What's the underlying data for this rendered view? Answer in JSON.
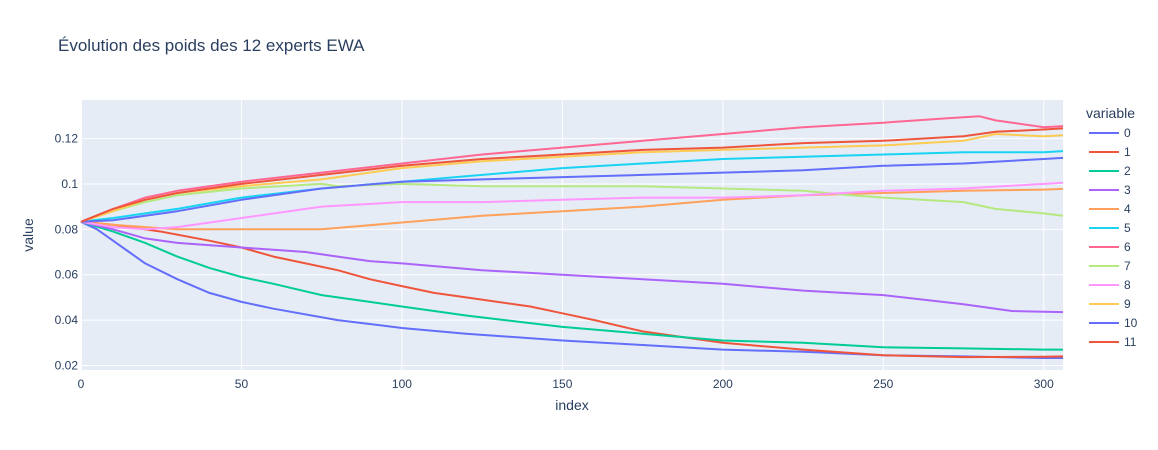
{
  "chart_data": {
    "type": "line",
    "title": "Évolution des poids des 12 experts EWA",
    "xlabel": "index",
    "ylabel": "value",
    "xlim": [
      0,
      306
    ],
    "ylim": [
      0.018,
      0.137
    ],
    "xticks": [
      0,
      50,
      100,
      150,
      200,
      250,
      300
    ],
    "yticks": [
      0.02,
      0.04,
      0.06,
      0.08,
      0.1,
      0.12
    ],
    "ytick_labels": [
      "0.02",
      "0.04",
      "0.06",
      "0.08",
      "0.1",
      "0.12"
    ],
    "grid": true,
    "plot_background": "#E5ECF6",
    "legend": {
      "title": "variable",
      "placement": "right"
    },
    "series": [
      {
        "name": "0",
        "color": "#636EFA",
        "x": [
          0,
          5,
          10,
          15,
          20,
          30,
          40,
          50,
          60,
          80,
          100,
          120,
          150,
          175,
          200,
          225,
          250,
          275,
          300,
          306
        ],
        "y": [
          0.0833,
          0.08,
          0.075,
          0.07,
          0.065,
          0.058,
          0.052,
          0.048,
          0.045,
          0.04,
          0.0365,
          0.034,
          0.031,
          0.029,
          0.027,
          0.026,
          0.0245,
          0.024,
          0.0233,
          0.0233
        ]
      },
      {
        "name": "1",
        "color": "#EF553B",
        "x": [
          0,
          10,
          25,
          40,
          50,
          60,
          70,
          80,
          90,
          100,
          110,
          120,
          140,
          150,
          160,
          175,
          190,
          200,
          225,
          250,
          275,
          300,
          306
        ],
        "y": [
          0.0833,
          0.082,
          0.079,
          0.075,
          0.072,
          0.068,
          0.065,
          0.062,
          0.058,
          0.055,
          0.052,
          0.05,
          0.046,
          0.043,
          0.04,
          0.035,
          0.032,
          0.03,
          0.027,
          0.0245,
          0.0237,
          0.0238,
          0.024
        ]
      },
      {
        "name": "2",
        "color": "#00CC96",
        "x": [
          0,
          10,
          20,
          30,
          40,
          50,
          60,
          75,
          90,
          100,
          120,
          150,
          175,
          200,
          225,
          250,
          275,
          300,
          306
        ],
        "y": [
          0.0833,
          0.079,
          0.074,
          0.068,
          0.063,
          0.059,
          0.056,
          0.051,
          0.048,
          0.046,
          0.042,
          0.037,
          0.034,
          0.031,
          0.03,
          0.028,
          0.0275,
          0.027,
          0.027
        ]
      },
      {
        "name": "3",
        "color": "#AB63FA",
        "x": [
          0,
          10,
          20,
          30,
          50,
          70,
          80,
          90,
          100,
          125,
          150,
          175,
          200,
          225,
          250,
          275,
          290,
          300,
          306
        ],
        "y": [
          0.0833,
          0.08,
          0.076,
          0.074,
          0.072,
          0.07,
          0.068,
          0.066,
          0.065,
          0.062,
          0.06,
          0.058,
          0.056,
          0.053,
          0.051,
          0.047,
          0.044,
          0.0437,
          0.0435
        ]
      },
      {
        "name": "4",
        "color": "#FFA15A",
        "x": [
          0,
          10,
          20,
          30,
          50,
          75,
          100,
          125,
          150,
          175,
          200,
          225,
          250,
          275,
          300,
          306
        ],
        "y": [
          0.0833,
          0.082,
          0.081,
          0.08,
          0.08,
          0.08,
          0.083,
          0.086,
          0.088,
          0.09,
          0.093,
          0.095,
          0.096,
          0.097,
          0.0975,
          0.0978
        ]
      },
      {
        "name": "5",
        "color": "#19D3F3",
        "x": [
          0,
          10,
          20,
          30,
          50,
          75,
          100,
          125,
          150,
          175,
          200,
          225,
          250,
          275,
          300,
          306
        ],
        "y": [
          0.0833,
          0.085,
          0.087,
          0.089,
          0.094,
          0.098,
          0.101,
          0.104,
          0.107,
          0.109,
          0.111,
          0.112,
          0.113,
          0.114,
          0.114,
          0.1145
        ]
      },
      {
        "name": "6",
        "color": "#FF6692",
        "x": [
          0,
          10,
          20,
          30,
          50,
          75,
          100,
          125,
          150,
          175,
          200,
          225,
          250,
          270,
          280,
          285,
          300,
          306
        ],
        "y": [
          0.0833,
          0.089,
          0.094,
          0.097,
          0.101,
          0.105,
          0.109,
          0.113,
          0.116,
          0.119,
          0.122,
          0.125,
          0.127,
          0.129,
          0.1298,
          0.128,
          0.125,
          0.1255
        ]
      },
      {
        "name": "7",
        "color": "#B6E880",
        "x": [
          0,
          10,
          20,
          30,
          50,
          75,
          80,
          100,
          125,
          150,
          175,
          200,
          225,
          240,
          250,
          275,
          285,
          300,
          306
        ],
        "y": [
          0.0833,
          0.088,
          0.092,
          0.095,
          0.098,
          0.1,
          0.099,
          0.1,
          0.099,
          0.099,
          0.099,
          0.098,
          0.097,
          0.095,
          0.094,
          0.092,
          0.089,
          0.087,
          0.086
        ]
      },
      {
        "name": "8",
        "color": "#FF97FF",
        "x": [
          0,
          10,
          20,
          30,
          50,
          75,
          100,
          125,
          150,
          175,
          200,
          225,
          250,
          275,
          300,
          306
        ],
        "y": [
          0.0833,
          0.081,
          0.08,
          0.081,
          0.085,
          0.09,
          0.092,
          0.092,
          0.093,
          0.094,
          0.094,
          0.095,
          0.097,
          0.098,
          0.1,
          0.1005
        ]
      },
      {
        "name": "9",
        "color": "#FECB52",
        "x": [
          0,
          10,
          20,
          30,
          50,
          75,
          100,
          125,
          150,
          175,
          200,
          225,
          250,
          275,
          285,
          300,
          306
        ],
        "y": [
          0.0833,
          0.088,
          0.093,
          0.096,
          0.099,
          0.102,
          0.107,
          0.11,
          0.112,
          0.114,
          0.115,
          0.116,
          0.117,
          0.119,
          0.122,
          0.121,
          0.1215
        ]
      },
      {
        "name": "10",
        "color": "#636EFA",
        "x": [
          0,
          10,
          20,
          30,
          50,
          75,
          100,
          125,
          150,
          175,
          200,
          225,
          250,
          275,
          300,
          306
        ],
        "y": [
          0.0833,
          0.084,
          0.086,
          0.088,
          0.093,
          0.098,
          0.101,
          0.102,
          0.103,
          0.104,
          0.105,
          0.106,
          0.108,
          0.109,
          0.111,
          0.1115
        ]
      },
      {
        "name": "11",
        "color": "#EF553B",
        "x": [
          0,
          10,
          20,
          30,
          50,
          75,
          100,
          125,
          150,
          175,
          200,
          225,
          250,
          275,
          285,
          300,
          306
        ],
        "y": [
          0.0833,
          0.089,
          0.093,
          0.096,
          0.1,
          0.104,
          0.108,
          0.111,
          0.113,
          0.115,
          0.116,
          0.118,
          0.119,
          0.121,
          0.123,
          0.124,
          0.1245
        ]
      }
    ]
  }
}
